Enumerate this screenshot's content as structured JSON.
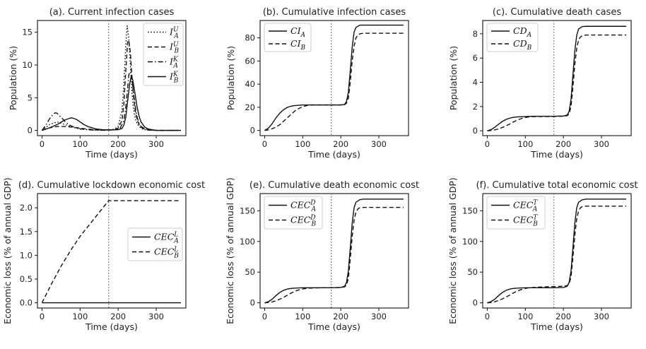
{
  "chart_data": [
    {
      "id": "a",
      "type": "line",
      "title": "(a). Current infection cases",
      "xlabel": "Time (days)",
      "ylabel": "Population (%)",
      "xlim": [
        -12,
        378
      ],
      "ylim": [
        -0.8,
        16.8
      ],
      "xticks": [
        0,
        100,
        200,
        300
      ],
      "yticks": [
        0,
        5,
        10,
        15
      ],
      "vline": 175,
      "legend": {
        "position": "top-right"
      },
      "series": [
        {
          "name": "I_A^U",
          "base": "I",
          "sup": "U",
          "sub": "A",
          "dash": "dotted",
          "x": [
            0,
            20,
            40,
            60,
            80,
            100,
            120,
            140,
            160,
            175,
            190,
            200,
            210,
            215,
            220,
            224,
            228,
            232,
            236,
            240,
            245,
            250,
            255,
            260,
            270,
            280,
            300,
            330,
            365
          ],
          "y": [
            0,
            0.9,
            1.3,
            0.9,
            0.5,
            0.2,
            0.1,
            0.05,
            0.05,
            0.05,
            0.2,
            0.6,
            3.0,
            7.0,
            13.0,
            16.0,
            14.0,
            10.0,
            6.0,
            3.5,
            1.8,
            1.0,
            0.6,
            0.3,
            0.1,
            0.05,
            0,
            0,
            0
          ]
        },
        {
          "name": "I_B^U",
          "base": "I",
          "sup": "U",
          "sub": "B",
          "dash": "dashed",
          "x": [
            0,
            20,
            40,
            60,
            80,
            100,
            120,
            140,
            160,
            175,
            190,
            200,
            210,
            215,
            220,
            225,
            228,
            232,
            236,
            240,
            245,
            250,
            255,
            260,
            270,
            280,
            300,
            330,
            365
          ],
          "y": [
            0,
            0.4,
            0.6,
            0.6,
            0.5,
            0.35,
            0.2,
            0.1,
            0.05,
            0.05,
            0.1,
            0.35,
            1.5,
            4.0,
            9.0,
            13.5,
            13.8,
            12.0,
            8.5,
            5.5,
            3.0,
            1.6,
            0.9,
            0.5,
            0.2,
            0.05,
            0,
            0,
            0
          ]
        },
        {
          "name": "I_A^K",
          "base": "I",
          "sup": "K",
          "sub": "A",
          "dash": "dashdot",
          "x": [
            0,
            10,
            20,
            30,
            35,
            40,
            50,
            60,
            70,
            80,
            90,
            100,
            120,
            140,
            160,
            175,
            195,
            205,
            215,
            220,
            225,
            228,
            232,
            235,
            238,
            242,
            246,
            250,
            255,
            260,
            270,
            280,
            300,
            330,
            365
          ],
          "y": [
            0,
            0.8,
            1.8,
            2.5,
            2.7,
            2.6,
            2.0,
            1.4,
            0.9,
            0.6,
            0.4,
            0.25,
            0.1,
            0.05,
            0.05,
            0.05,
            0.1,
            0.3,
            1.5,
            3.5,
            6.5,
            8.5,
            9.0,
            8.5,
            7.0,
            5.0,
            3.2,
            2.0,
            1.1,
            0.6,
            0.25,
            0.1,
            0,
            0,
            0
          ]
        },
        {
          "name": "I_B^K",
          "base": "I",
          "sup": "K",
          "sub": "B",
          "dash": "solid",
          "x": [
            0,
            20,
            40,
            60,
            75,
            80,
            90,
            100,
            110,
            120,
            140,
            160,
            175,
            200,
            210,
            215,
            220,
            225,
            230,
            234,
            238,
            242,
            246,
            250,
            255,
            260,
            270,
            280,
            290,
            300,
            330,
            365
          ],
          "y": [
            0,
            0.4,
            0.9,
            1.6,
            1.9,
            1.9,
            1.7,
            1.3,
            0.9,
            0.6,
            0.25,
            0.1,
            0.1,
            0.1,
            0.3,
            0.8,
            2.0,
            4.5,
            7.0,
            8.2,
            7.8,
            6.5,
            5.0,
            3.5,
            2.2,
            1.3,
            0.5,
            0.2,
            0.1,
            0,
            0,
            0
          ]
        }
      ]
    },
    {
      "id": "b",
      "type": "line",
      "title": "(b). Cumulative infection cases",
      "xlabel": "Time (days)",
      "ylabel": "Population (%)",
      "xlim": [
        -12,
        378
      ],
      "ylim": [
        -4.5,
        95
      ],
      "xticks": [
        0,
        100,
        200,
        300
      ],
      "yticks": [
        0,
        20,
        40,
        60,
        80
      ],
      "vline": 175,
      "legend": {
        "position": "top-left"
      },
      "series": [
        {
          "name": "CI_A",
          "base": "CI",
          "sub": "A",
          "dash": "solid",
          "x": [
            0,
            10,
            20,
            30,
            40,
            50,
            60,
            70,
            80,
            100,
            120,
            150,
            175,
            200,
            210,
            215,
            220,
            225,
            230,
            235,
            240,
            250,
            260,
            280,
            300,
            365
          ],
          "y": [
            0,
            2,
            6,
            11,
            15,
            18,
            20,
            21,
            21.5,
            22,
            22,
            22,
            22,
            22,
            22.5,
            25,
            33,
            52,
            72,
            85,
            89,
            91,
            91,
            91,
            91,
            91
          ]
        },
        {
          "name": "CI_B",
          "base": "CI",
          "sub": "B",
          "dash": "dashed",
          "x": [
            0,
            10,
            20,
            30,
            40,
            50,
            60,
            70,
            80,
            90,
            100,
            110,
            120,
            150,
            175,
            200,
            210,
            215,
            220,
            225,
            230,
            235,
            240,
            245,
            250,
            260,
            280,
            300,
            365
          ],
          "y": [
            0,
            0.5,
            1.5,
            3,
            5,
            8,
            11,
            14,
            17,
            19,
            20.5,
            21.5,
            22,
            22,
            22,
            22,
            22.3,
            23.5,
            28,
            42,
            60,
            73,
            80,
            82.5,
            83.5,
            84,
            84,
            84,
            84
          ]
        }
      ]
    },
    {
      "id": "c",
      "type": "line",
      "title": "(c). Cumulative death cases",
      "xlabel": "Time (days)",
      "ylabel": "Population (%)",
      "xlim": [
        -12,
        378
      ],
      "ylim": [
        -0.4,
        9.1
      ],
      "xticks": [
        0,
        100,
        200,
        300
      ],
      "yticks": [
        0,
        2,
        4,
        6,
        8
      ],
      "vline": 175,
      "legend": {
        "position": "top-left"
      },
      "series": [
        {
          "name": "CD_A",
          "base": "CD",
          "sub": "A",
          "dash": "solid",
          "x": [
            0,
            10,
            20,
            30,
            40,
            50,
            60,
            70,
            80,
            100,
            120,
            150,
            175,
            200,
            210,
            215,
            220,
            225,
            230,
            235,
            240,
            250,
            260,
            280,
            300,
            365
          ],
          "y": [
            0,
            0.1,
            0.3,
            0.55,
            0.78,
            0.95,
            1.05,
            1.12,
            1.15,
            1.18,
            1.2,
            1.2,
            1.2,
            1.22,
            1.3,
            1.6,
            2.6,
            4.6,
            6.6,
            7.9,
            8.4,
            8.6,
            8.62,
            8.62,
            8.62,
            8.62
          ]
        },
        {
          "name": "CD_B",
          "base": "CD",
          "sub": "B",
          "dash": "dashed",
          "x": [
            0,
            10,
            20,
            30,
            40,
            50,
            60,
            70,
            80,
            90,
            100,
            110,
            120,
            150,
            175,
            200,
            210,
            215,
            220,
            225,
            230,
            235,
            240,
            245,
            250,
            260,
            280,
            300,
            365
          ],
          "y": [
            0,
            0.03,
            0.08,
            0.16,
            0.28,
            0.42,
            0.58,
            0.75,
            0.9,
            1.02,
            1.1,
            1.15,
            1.17,
            1.18,
            1.18,
            1.2,
            1.25,
            1.4,
            2.0,
            3.6,
            5.5,
            6.8,
            7.5,
            7.75,
            7.85,
            7.9,
            7.9,
            7.9,
            7.9
          ]
        }
      ]
    },
    {
      "id": "d",
      "type": "line",
      "title": "(d). Cumulative lockdown economic cost",
      "xlabel": "Time (days)",
      "ylabel": "Economic loss (% of annual GDP)",
      "xlim": [
        -12,
        378
      ],
      "ylim": [
        -0.11,
        2.3
      ],
      "xticks": [
        0,
        100,
        200,
        300
      ],
      "yticks": [
        0.0,
        0.5,
        1.0,
        1.5,
        2.0
      ],
      "ytick_labels": [
        "0.0",
        "0.5",
        "1.0",
        "1.5",
        "2.0"
      ],
      "vline": 175,
      "legend": {
        "position": "center-right"
      },
      "series": [
        {
          "name": "CEC_A^L",
          "base": "CEC",
          "sup": "L",
          "sub": "A",
          "dash": "solid",
          "x": [
            0,
            365
          ],
          "y": [
            0,
            0
          ]
        },
        {
          "name": "CEC_B^L",
          "base": "CEC",
          "sup": "L",
          "sub": "B",
          "dash": "dashed",
          "x": [
            0,
            25,
            50,
            75,
            100,
            125,
            150,
            175,
            200,
            365
          ],
          "y": [
            0,
            0.4,
            0.77,
            1.1,
            1.4,
            1.65,
            1.9,
            2.15,
            2.15,
            2.15
          ]
        }
      ]
    },
    {
      "id": "e",
      "type": "line",
      "title": "(e). Cumulative death economic cost",
      "xlabel": "Time (days)",
      "ylabel": "Economic loss (% of annual GDP)",
      "xlim": [
        -12,
        378
      ],
      "ylim": [
        -8.5,
        178
      ],
      "xticks": [
        0,
        100,
        200,
        300
      ],
      "yticks": [
        0,
        50,
        100,
        150
      ],
      "vline": 175,
      "legend": {
        "position": "top-left"
      },
      "series": [
        {
          "name": "CEC_A^D",
          "base": "CEC",
          "sup": "D",
          "sub": "A",
          "dash": "solid",
          "x": [
            0,
            10,
            20,
            30,
            40,
            50,
            60,
            70,
            80,
            100,
            120,
            150,
            175,
            200,
            210,
            215,
            220,
            225,
            230,
            235,
            240,
            250,
            260,
            280,
            300,
            365
          ],
          "y": [
            0,
            2,
            6,
            12,
            17,
            20.5,
            22.5,
            23.5,
            24,
            24.5,
            24.5,
            24.5,
            24.5,
            25,
            27,
            33,
            52,
            90,
            130,
            155,
            164,
            168,
            169,
            169,
            169,
            169
          ]
        },
        {
          "name": "CEC_B^D",
          "base": "CEC",
          "sup": "D",
          "sub": "B",
          "dash": "dashed",
          "x": [
            0,
            10,
            20,
            30,
            40,
            50,
            60,
            70,
            80,
            90,
            100,
            110,
            120,
            150,
            175,
            200,
            210,
            215,
            220,
            225,
            230,
            235,
            240,
            245,
            250,
            260,
            280,
            300,
            365
          ],
          "y": [
            0,
            0.5,
            1.5,
            3.5,
            6,
            9,
            12.5,
            16,
            19,
            21,
            22.5,
            23.5,
            24,
            24.5,
            24.5,
            25,
            26,
            29,
            40,
            72,
            108,
            135,
            148,
            153,
            155,
            155.5,
            155.5,
            155.5,
            155.5
          ]
        }
      ]
    },
    {
      "id": "f",
      "type": "line",
      "title": "(f). Cumulative total economic cost",
      "xlabel": "Time (days)",
      "ylabel": "Economic loss (% of annual GDP)",
      "xlim": [
        -12,
        378
      ],
      "ylim": [
        -8.5,
        178
      ],
      "xticks": [
        0,
        100,
        200,
        300
      ],
      "yticks": [
        0,
        50,
        100,
        150
      ],
      "vline": 175,
      "legend": {
        "position": "top-left"
      },
      "series": [
        {
          "name": "CEC_A^T",
          "base": "CEC",
          "sup": "T",
          "sub": "A",
          "dash": "solid",
          "x": [
            0,
            10,
            20,
            30,
            40,
            50,
            60,
            70,
            80,
            100,
            120,
            150,
            175,
            200,
            210,
            215,
            220,
            225,
            230,
            235,
            240,
            250,
            260,
            280,
            300,
            365
          ],
          "y": [
            0,
            2,
            6,
            12,
            17,
            20.5,
            22.5,
            23.5,
            24,
            24.5,
            24.5,
            24.5,
            24.5,
            25,
            27,
            33,
            52,
            90,
            130,
            155,
            164,
            168,
            169,
            169,
            169,
            169
          ]
        },
        {
          "name": "CEC_B^T",
          "base": "CEC",
          "sup": "T",
          "sub": "B",
          "dash": "dashed",
          "x": [
            0,
            10,
            20,
            30,
            40,
            50,
            60,
            70,
            80,
            90,
            100,
            110,
            120,
            150,
            175,
            200,
            210,
            215,
            220,
            225,
            230,
            235,
            240,
            245,
            250,
            260,
            280,
            300,
            365
          ],
          "y": [
            0,
            0.5,
            1.7,
            4,
            6.5,
            9.5,
            13,
            16.5,
            19.5,
            21.8,
            23.5,
            24.5,
            25,
            26,
            26.5,
            27,
            28,
            31,
            42,
            74,
            110,
            137,
            150,
            155,
            157,
            157.5,
            157.5,
            157.5,
            157.5
          ]
        }
      ]
    }
  ]
}
